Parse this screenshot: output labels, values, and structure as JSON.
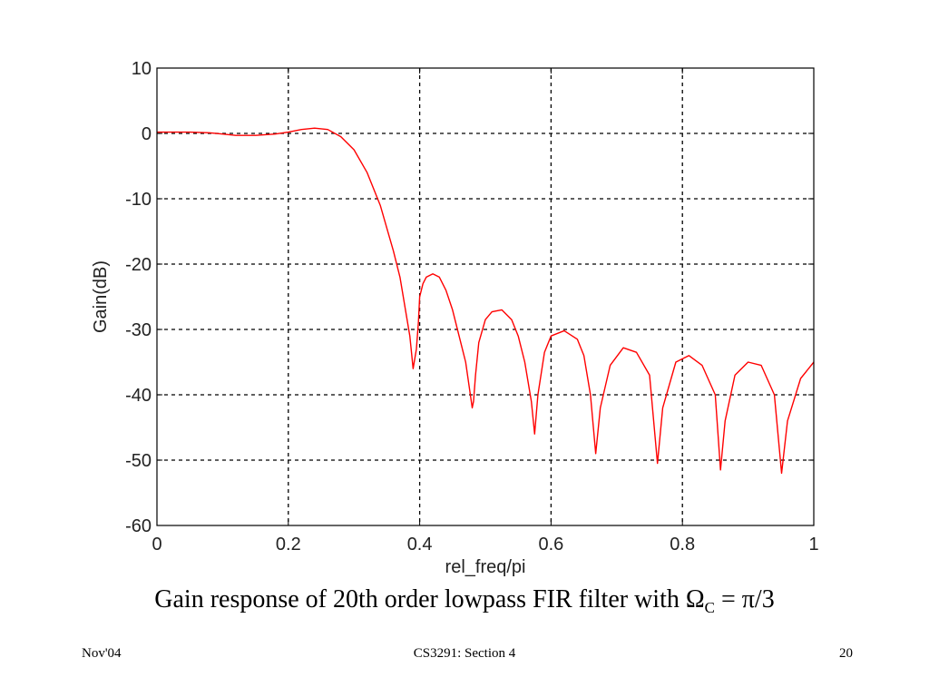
{
  "chart_data": {
    "type": "line",
    "xlabel": "rel_freq/pi",
    "ylabel": "Gain(dB)",
    "xlim": [
      0,
      1
    ],
    "ylim": [
      -60,
      10
    ],
    "xticks": [
      0,
      0.2,
      0.4,
      0.6,
      0.8,
      1
    ],
    "xtick_labels": [
      "0",
      "0.2",
      "0.4",
      "0.6",
      "0.8",
      "1"
    ],
    "yticks": [
      10,
      0,
      -10,
      -20,
      -30,
      -40,
      -50,
      -60
    ],
    "ytick_labels": [
      "10",
      "0",
      "-10",
      "-20",
      "-30",
      "-40",
      "-50",
      "-60"
    ],
    "grid": true,
    "grid_style": "dashed",
    "series": [
      {
        "color": "#ff0000",
        "x": [
          0,
          0.02,
          0.05,
          0.08,
          0.1,
          0.12,
          0.15,
          0.18,
          0.2,
          0.22,
          0.24,
          0.26,
          0.28,
          0.3,
          0.32,
          0.34,
          0.36,
          0.37,
          0.38,
          0.385,
          0.39,
          0.395,
          0.398,
          0.4,
          0.405,
          0.41,
          0.42,
          0.43,
          0.44,
          0.45,
          0.46,
          0.47,
          0.475,
          0.48,
          0.482,
          0.485,
          0.49,
          0.5,
          0.51,
          0.525,
          0.54,
          0.55,
          0.56,
          0.57,
          0.575,
          0.58,
          0.59,
          0.6,
          0.62,
          0.64,
          0.65,
          0.66,
          0.668,
          0.675,
          0.69,
          0.71,
          0.73,
          0.75,
          0.762,
          0.77,
          0.79,
          0.81,
          0.83,
          0.85,
          0.858,
          0.865,
          0.88,
          0.9,
          0.92,
          0.94,
          0.951,
          0.96,
          0.98,
          1.0
        ],
        "y": [
          0.2,
          0.2,
          0.2,
          0.1,
          -0.1,
          -0.3,
          -0.3,
          -0.1,
          0.2,
          0.6,
          0.8,
          0.6,
          -0.5,
          -2.5,
          -6,
          -11,
          -18,
          -22,
          -28,
          -31,
          -36,
          -33,
          -29,
          -25,
          -23,
          -22,
          -21.5,
          -22,
          -24,
          -27,
          -31,
          -35,
          -38.5,
          -42,
          -41,
          -37,
          -32,
          -28.5,
          -27.3,
          -27,
          -28.5,
          -31,
          -35,
          -41,
          -46,
          -40,
          -33.5,
          -31,
          -30.2,
          -31.5,
          -34,
          -40,
          -49,
          -42,
          -35.5,
          -32.8,
          -33.5,
          -37,
          -50.5,
          -42,
          -35,
          -34,
          -35.5,
          -40,
          -51.5,
          -44,
          -37,
          -35,
          -35.5,
          -40,
          -52,
          -44,
          -37.5,
          -35
        ]
      }
    ]
  },
  "caption": {
    "prefix": "Gain response of 20th order lowpass FIR filter with Ω",
    "subscript": "C",
    "suffix": " = π/3"
  },
  "footer": {
    "left": "Nov'04",
    "center": "CS3291: Section 4",
    "right": "20"
  }
}
